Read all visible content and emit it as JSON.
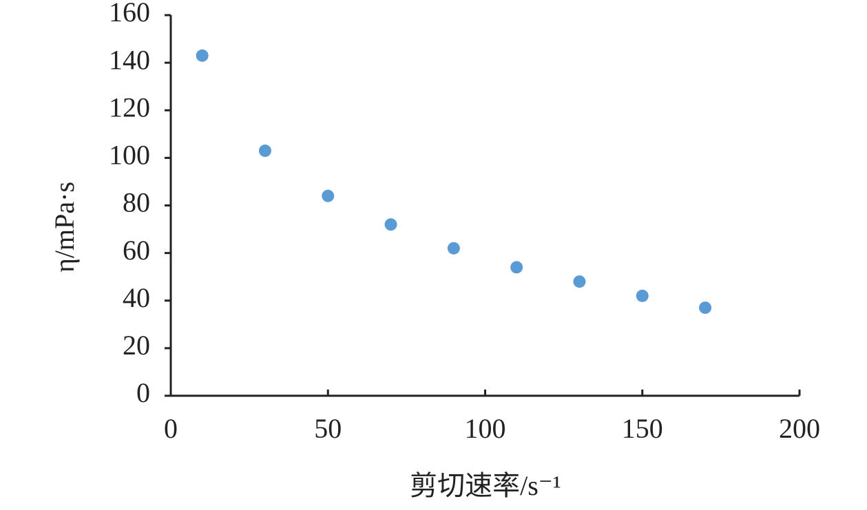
{
  "chart_data": {
    "type": "scatter",
    "x_label": "剪切速率/s⁻¹",
    "y_label": "η/mPa·s",
    "series": [
      {
        "color": "#5b9bd5",
        "x": [
          10,
          30,
          50,
          70,
          90,
          110,
          130,
          150,
          170
        ],
        "values": [
          143,
          103,
          84,
          72,
          62,
          54,
          48,
          42,
          37
        ]
      }
    ],
    "xlim": [
      0,
      200
    ],
    "xticks": [
      0,
      50,
      100,
      150,
      200
    ],
    "ylim": [
      0,
      160
    ],
    "yticks": [
      0,
      20,
      40,
      60,
      80,
      100,
      120,
      140,
      160
    ],
    "grid": false
  }
}
